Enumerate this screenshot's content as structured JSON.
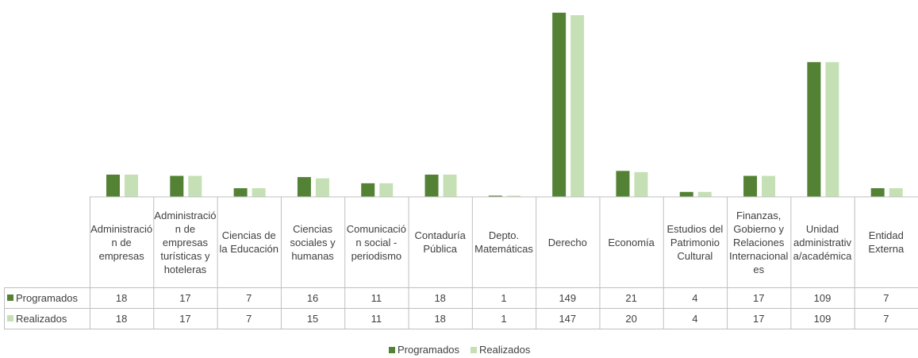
{
  "chart_data": {
    "type": "bar",
    "categories": [
      "Administración de empresas",
      "Administración de empresas turísticas y hoteleras",
      "Ciencias de la Educación",
      "Ciencias sociales y humanas",
      "Comunicación social - periodismo",
      "Contaduría Pública",
      "Depto. Matemáticas",
      "Derecho",
      "Economía",
      "Estudios del Patrimonio Cultural",
      "Finanzas, Gobierno y Relaciones Internacionales",
      "Unidad administrativa/académica",
      "Entidad Externa"
    ],
    "series": [
      {
        "name": "Programados",
        "color": "#548235",
        "values": [
          18,
          17,
          7,
          16,
          11,
          18,
          1,
          149,
          21,
          4,
          17,
          109,
          7
        ]
      },
      {
        "name": "Realizados",
        "color": "#c5e0b4",
        "values": [
          18,
          17,
          7,
          15,
          11,
          18,
          1,
          147,
          20,
          4,
          17,
          109,
          7
        ]
      }
    ],
    "legend": "bottom"
  }
}
